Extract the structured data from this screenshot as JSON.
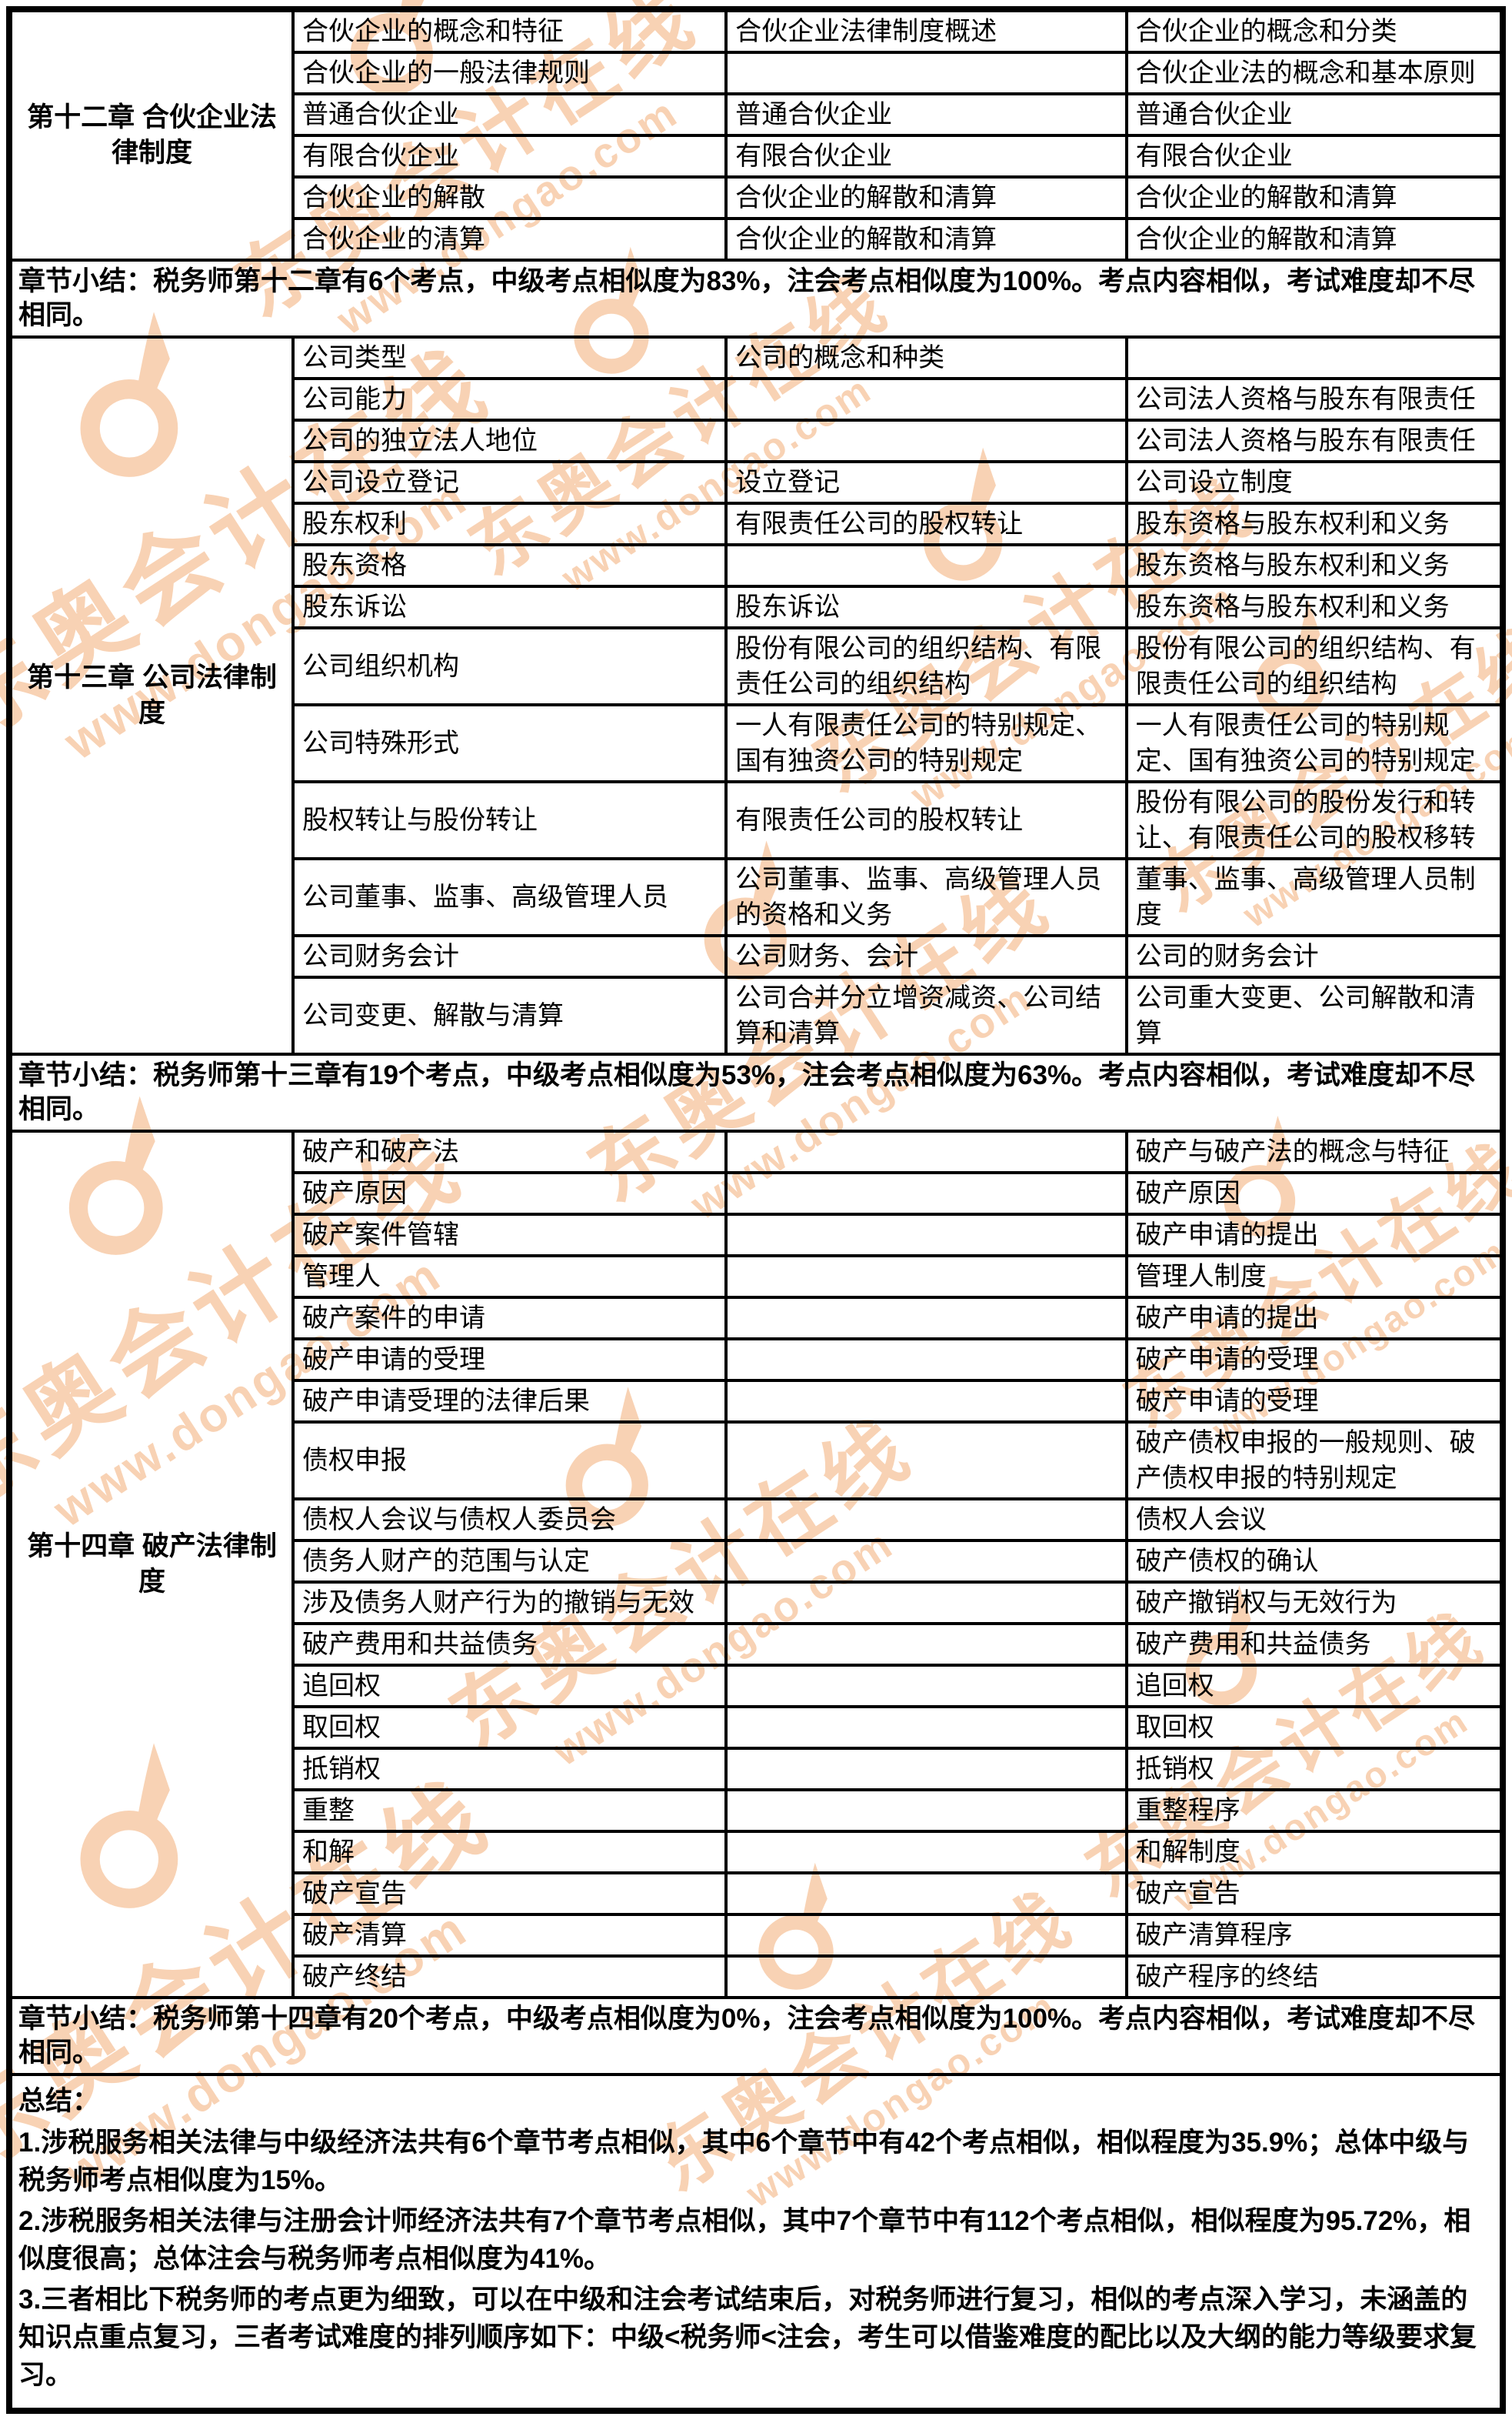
{
  "watermark": {
    "brand": "东奥会计在线",
    "url": "www.dongao.com",
    "color": "#f2a76b"
  },
  "table": {
    "border_color": "#000000",
    "chapters": [
      {
        "title": "第十二章 合伙企业法律制度",
        "rows": [
          [
            "合伙企业的概念和特征",
            "合伙企业法律制度概述",
            "合伙企业的概念和分类"
          ],
          [
            "合伙企业的一般法律规则",
            "",
            "合伙企业法的概念和基本原则"
          ],
          [
            "普通合伙企业",
            "普通合伙企业",
            "普通合伙企业"
          ],
          [
            "有限合伙企业",
            "有限合伙企业",
            "有限合伙企业"
          ],
          [
            "合伙企业的解散",
            "合伙企业的解散和清算",
            "合伙企业的解散和清算"
          ],
          [
            "合伙企业的清算",
            "合伙企业的解散和清算",
            "合伙企业的解散和清算"
          ]
        ],
        "summary": "章节小结：税务师第十二章有6个考点，中级考点相似度为83%，注会考点相似度为100%。考点内容相似，考试难度却不尽相同。"
      },
      {
        "title": "第十三章 公司法律制度",
        "rows": [
          [
            "公司类型",
            "公司的概念和种类",
            ""
          ],
          [
            "公司能力",
            "",
            "公司法人资格与股东有限责任"
          ],
          [
            "公司的独立法人地位",
            "",
            "公司法人资格与股东有限责任"
          ],
          [
            "公司设立登记",
            "设立登记",
            "公司设立制度"
          ],
          [
            "股东权利",
            "有限责任公司的股权转让",
            "股东资格与股东权利和义务"
          ],
          [
            "股东资格",
            "",
            "股东资格与股东权利和义务"
          ],
          [
            "股东诉讼",
            "股东诉讼",
            "股东资格与股东权利和义务"
          ],
          [
            "公司组织机构",
            "股份有限公司的组织结构、有限责任公司的组织结构",
            "股份有限公司的组织结构、有限责任公司的组织结构"
          ],
          [
            "公司特殊形式",
            "一人有限责任公司的特别规定、国有独资公司的特别规定",
            "一人有限责任公司的特别规定、国有独资公司的特别规定"
          ],
          [
            "股权转让与股份转让",
            "有限责任公司的股权转让",
            "股份有限公司的股份发行和转让、有限责任公司的股权移转"
          ],
          [
            "公司董事、监事、高级管理人员",
            "公司董事、监事、高级管理人员的资格和义务",
            "董事、监事、高级管理人员制度"
          ],
          [
            "公司财务会计",
            "公司财务、会计",
            "公司的财务会计"
          ],
          [
            "公司变更、解散与清算",
            "公司合并分立增资减资、公司结算和清算",
            "公司重大变更、公司解散和清算"
          ]
        ],
        "summary": "章节小结：税务师第十三章有19个考点，中级考点相似度为53%，注会考点相似度为63%。考点内容相似，考试难度却不尽相同。"
      },
      {
        "title": "第十四章 破产法律制度",
        "rows": [
          [
            "破产和破产法",
            "",
            "破产与破产法的概念与特征"
          ],
          [
            "破产原因",
            "",
            "破产原因"
          ],
          [
            "破产案件管辖",
            "",
            "破产申请的提出"
          ],
          [
            "管理人",
            "",
            "管理人制度"
          ],
          [
            "破产案件的申请",
            "",
            "破产申请的提出"
          ],
          [
            "破产申请的受理",
            "",
            "破产申请的受理"
          ],
          [
            "破产申请受理的法律后果",
            "",
            "破产申请的受理"
          ],
          [
            "债权申报",
            "",
            "破产债权申报的一般规则、破产债权申报的特别规定"
          ],
          [
            "债权人会议与债权人委员会",
            "",
            "债权人会议"
          ],
          [
            "债务人财产的范围与认定",
            "",
            "破产债权的确认"
          ],
          [
            "涉及债务人财产行为的撤销与无效",
            "",
            "破产撤销权与无效行为"
          ],
          [
            "破产费用和共益债务",
            "",
            "破产费用和共益债务"
          ],
          [
            "追回权",
            "",
            "追回权"
          ],
          [
            "取回权",
            "",
            "取回权"
          ],
          [
            "抵销权",
            "",
            "抵销权"
          ],
          [
            "重整",
            "",
            "重整程序"
          ],
          [
            "和解",
            "",
            "和解制度"
          ],
          [
            "破产宣告",
            "",
            "破产宣告"
          ],
          [
            "破产清算",
            "",
            "破产清算程序"
          ],
          [
            "破产终结",
            "",
            "破产程序的终结"
          ]
        ],
        "summary": "章节小结：税务师第十四章有20个考点，中级考点相似度为0%，注会考点相似度为100%。考点内容相似，考试难度却不尽相同。"
      }
    ],
    "conclusion": {
      "heading": "总结：",
      "points": [
        "1.涉税服务相关法律与中级经济法共有6个章节考点相似，其中6个章节中有42个考点相似，相似程度为35.9%；总体中级与税务师考点相似度为15%。",
        "2.涉税服务相关法律与注册会计师经济法共有7个章节考点相似，其中7个章节中有112个考点相似，相似程度为95.72%，相似度很高；总体注会与税务师考点相似度为41%。",
        "3.三者相比下税务师的考点更为细致，可以在中级和注会考试结束后，对税务师进行复习，相似的考点深入学习，未涵盖的知识点重点复习，三者考试难度的排列顺序如下：中级<税务师<注会，考生可以借鉴难度的配比以及大纲的能力等级要求复习。"
      ]
    }
  }
}
